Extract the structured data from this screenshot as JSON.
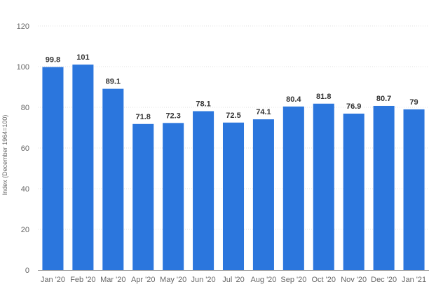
{
  "chart_data": {
    "type": "bar",
    "categories": [
      "Jan '20",
      "Feb '20",
      "Mar '20",
      "Apr '20",
      "May '20",
      "Jun '20",
      "Jul '20",
      "Aug '20",
      "Sep '20",
      "Oct '20",
      "Nov '20",
      "Dec '20",
      "Jan '21"
    ],
    "values": [
      99.8,
      101,
      89.1,
      71.8,
      72.3,
      78.1,
      72.5,
      74.1,
      80.4,
      81.8,
      76.9,
      80.7,
      79
    ],
    "value_labels": [
      "99.8",
      "101",
      "89.1",
      "71.8",
      "72.3",
      "78.1",
      "72.5",
      "74.1",
      "80.4",
      "81.8",
      "76.9",
      "80.7",
      "79"
    ],
    "title": "",
    "xlabel": "",
    "ylabel": "Index (December 1964=100)",
    "ylim": [
      0,
      120
    ],
    "yticks": [
      0,
      20,
      40,
      60,
      80,
      100,
      120
    ],
    "grid": true,
    "bar_color": "#2b76dd"
  }
}
